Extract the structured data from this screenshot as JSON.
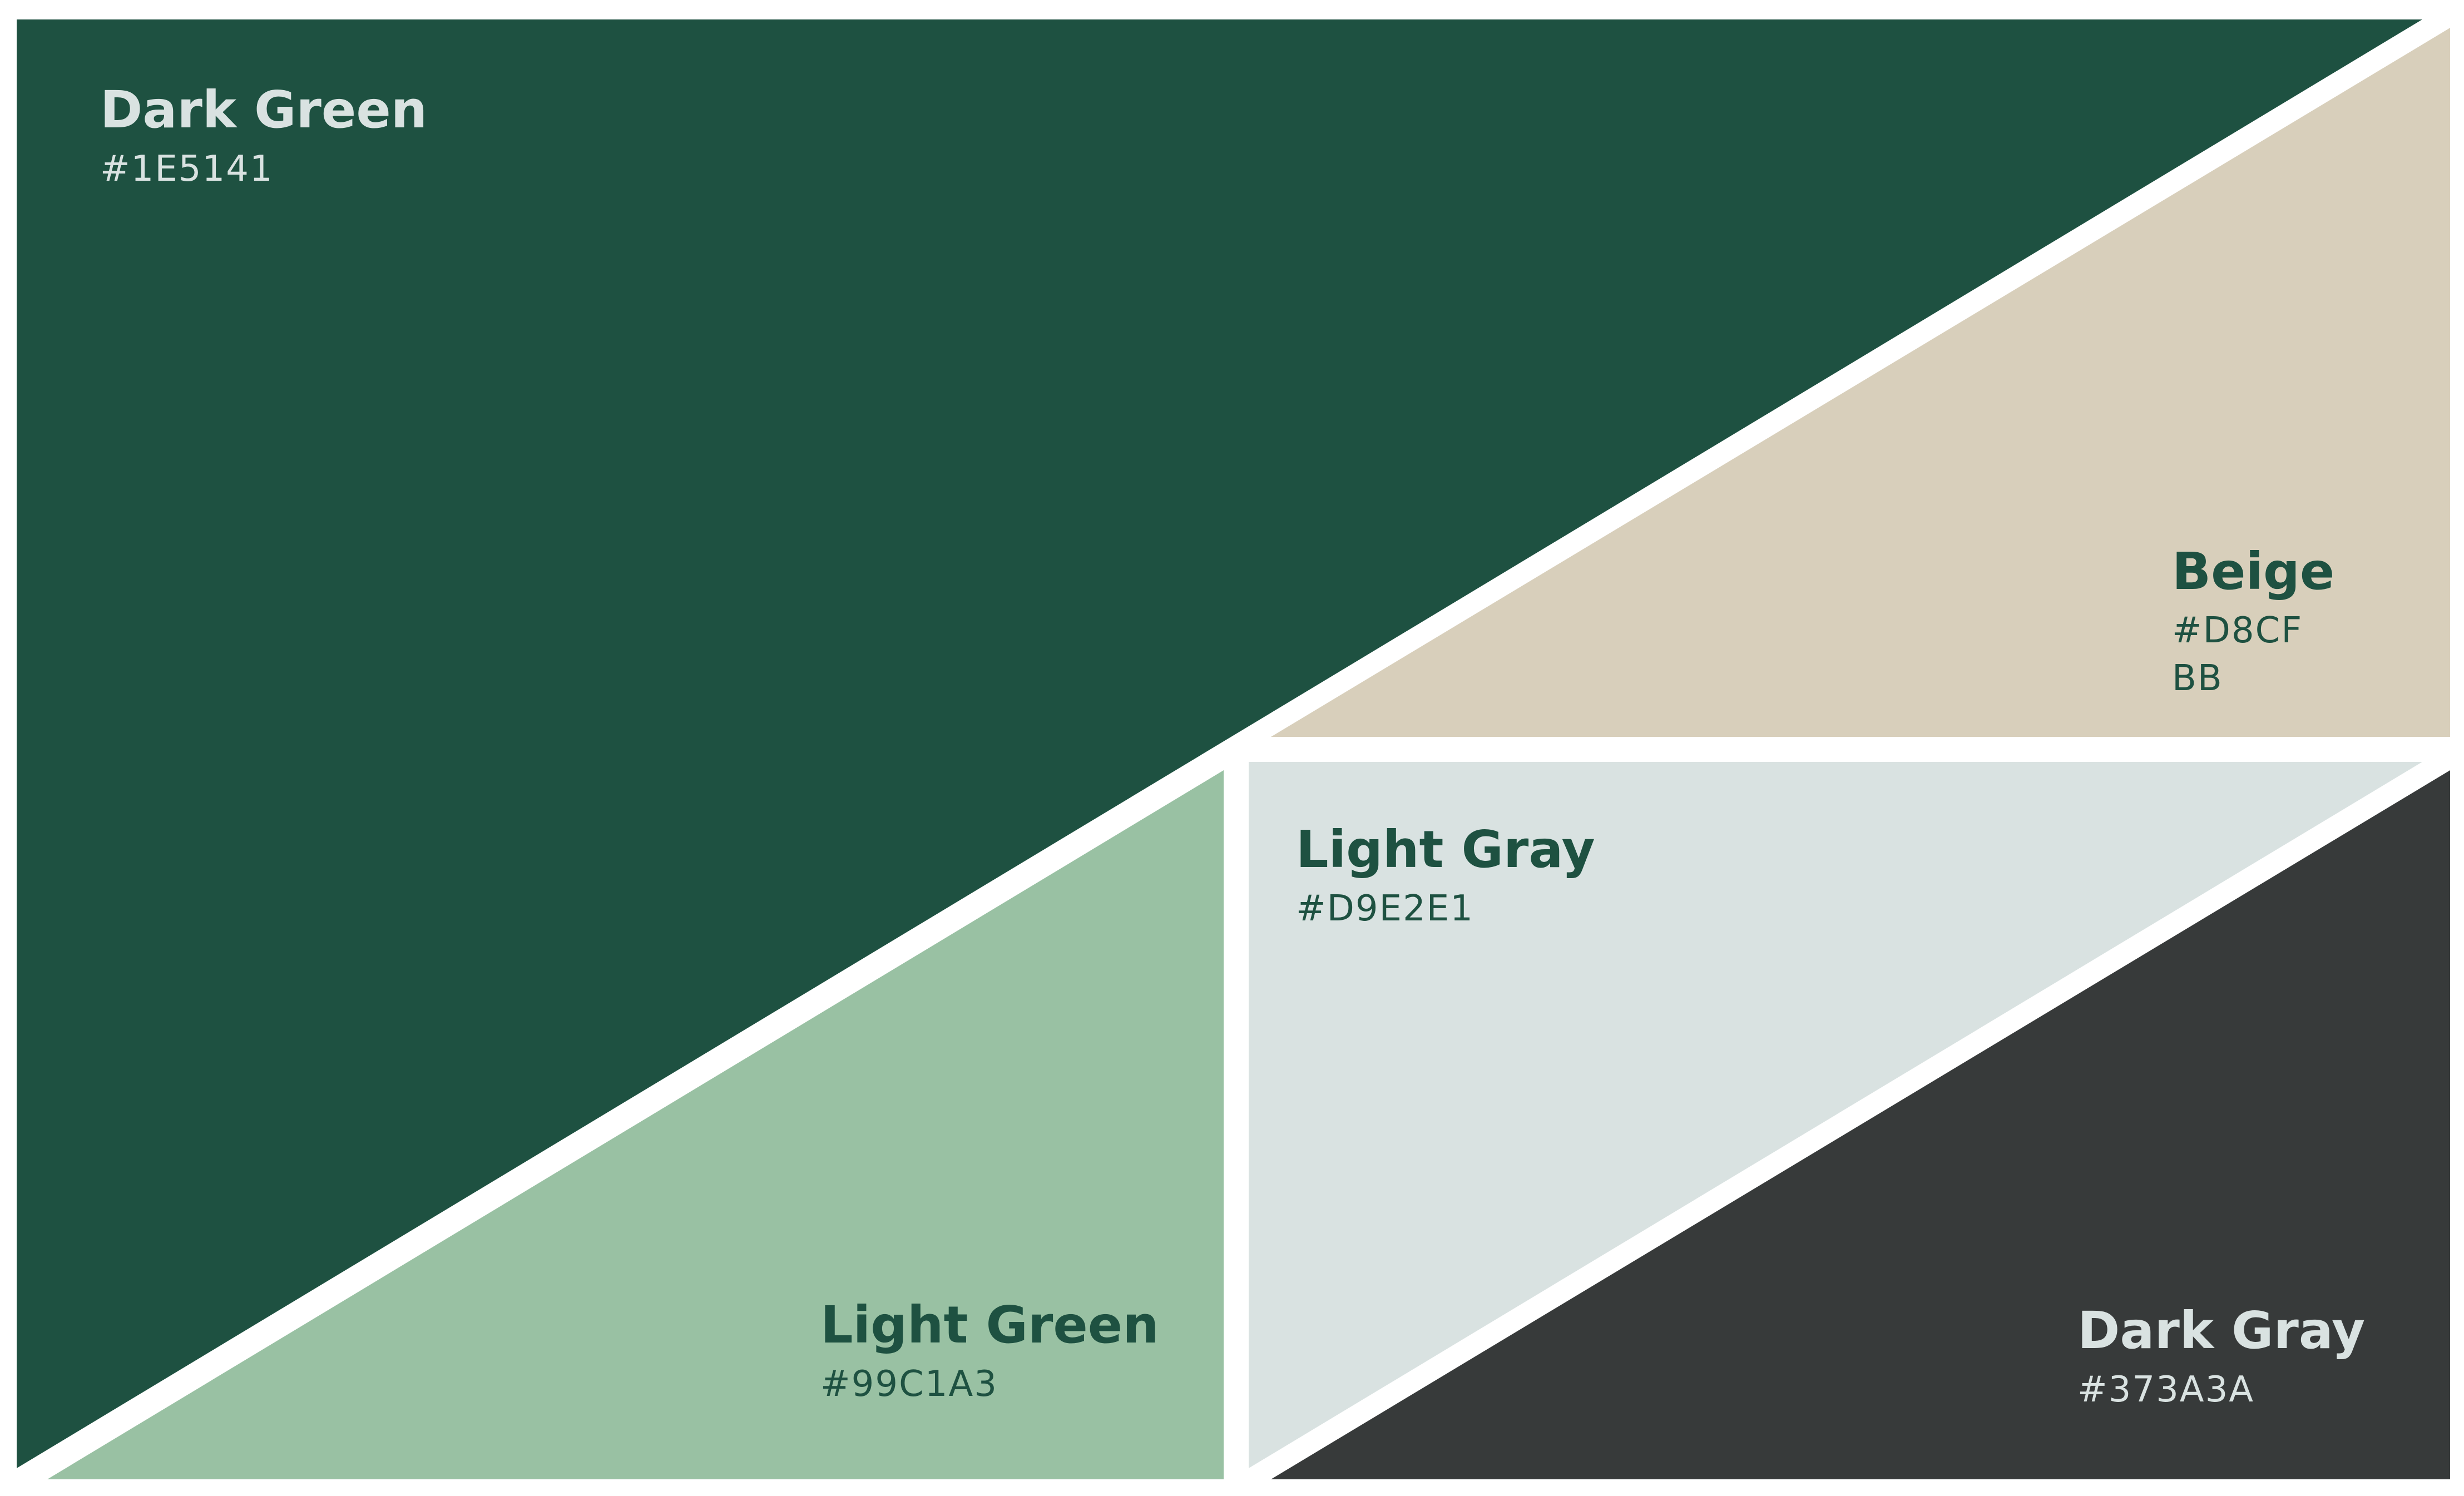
{
  "swatches": [
    {
      "id": "dark-green",
      "name": "Dark Green",
      "hex_lines": [
        "#1E5141"
      ],
      "fill": "#1E5141",
      "text_color": "#D9E2E1"
    },
    {
      "id": "beige",
      "name": "Beige",
      "hex_lines": [
        "#D8CF",
        "BB"
      ],
      "fill": "#D8CFBB",
      "text_color": "#1E5141"
    },
    {
      "id": "light-gray",
      "name": "Light Gray",
      "hex_lines": [
        "#D9E2E1"
      ],
      "fill": "#D9E2E1",
      "text_color": "#1E5141"
    },
    {
      "id": "light-green",
      "name": "Light Green",
      "hex_lines": [
        "#99C1A3"
      ],
      "fill": "#99C1A3",
      "text_color": "#1E5141"
    },
    {
      "id": "dark-gray",
      "name": "Dark Gray",
      "hex_lines": [
        "#373A3A"
      ],
      "fill": "#373A3A",
      "text_color": "#D9E2E1"
    }
  ],
  "colors": {
    "gap": "#FFFFFF"
  }
}
